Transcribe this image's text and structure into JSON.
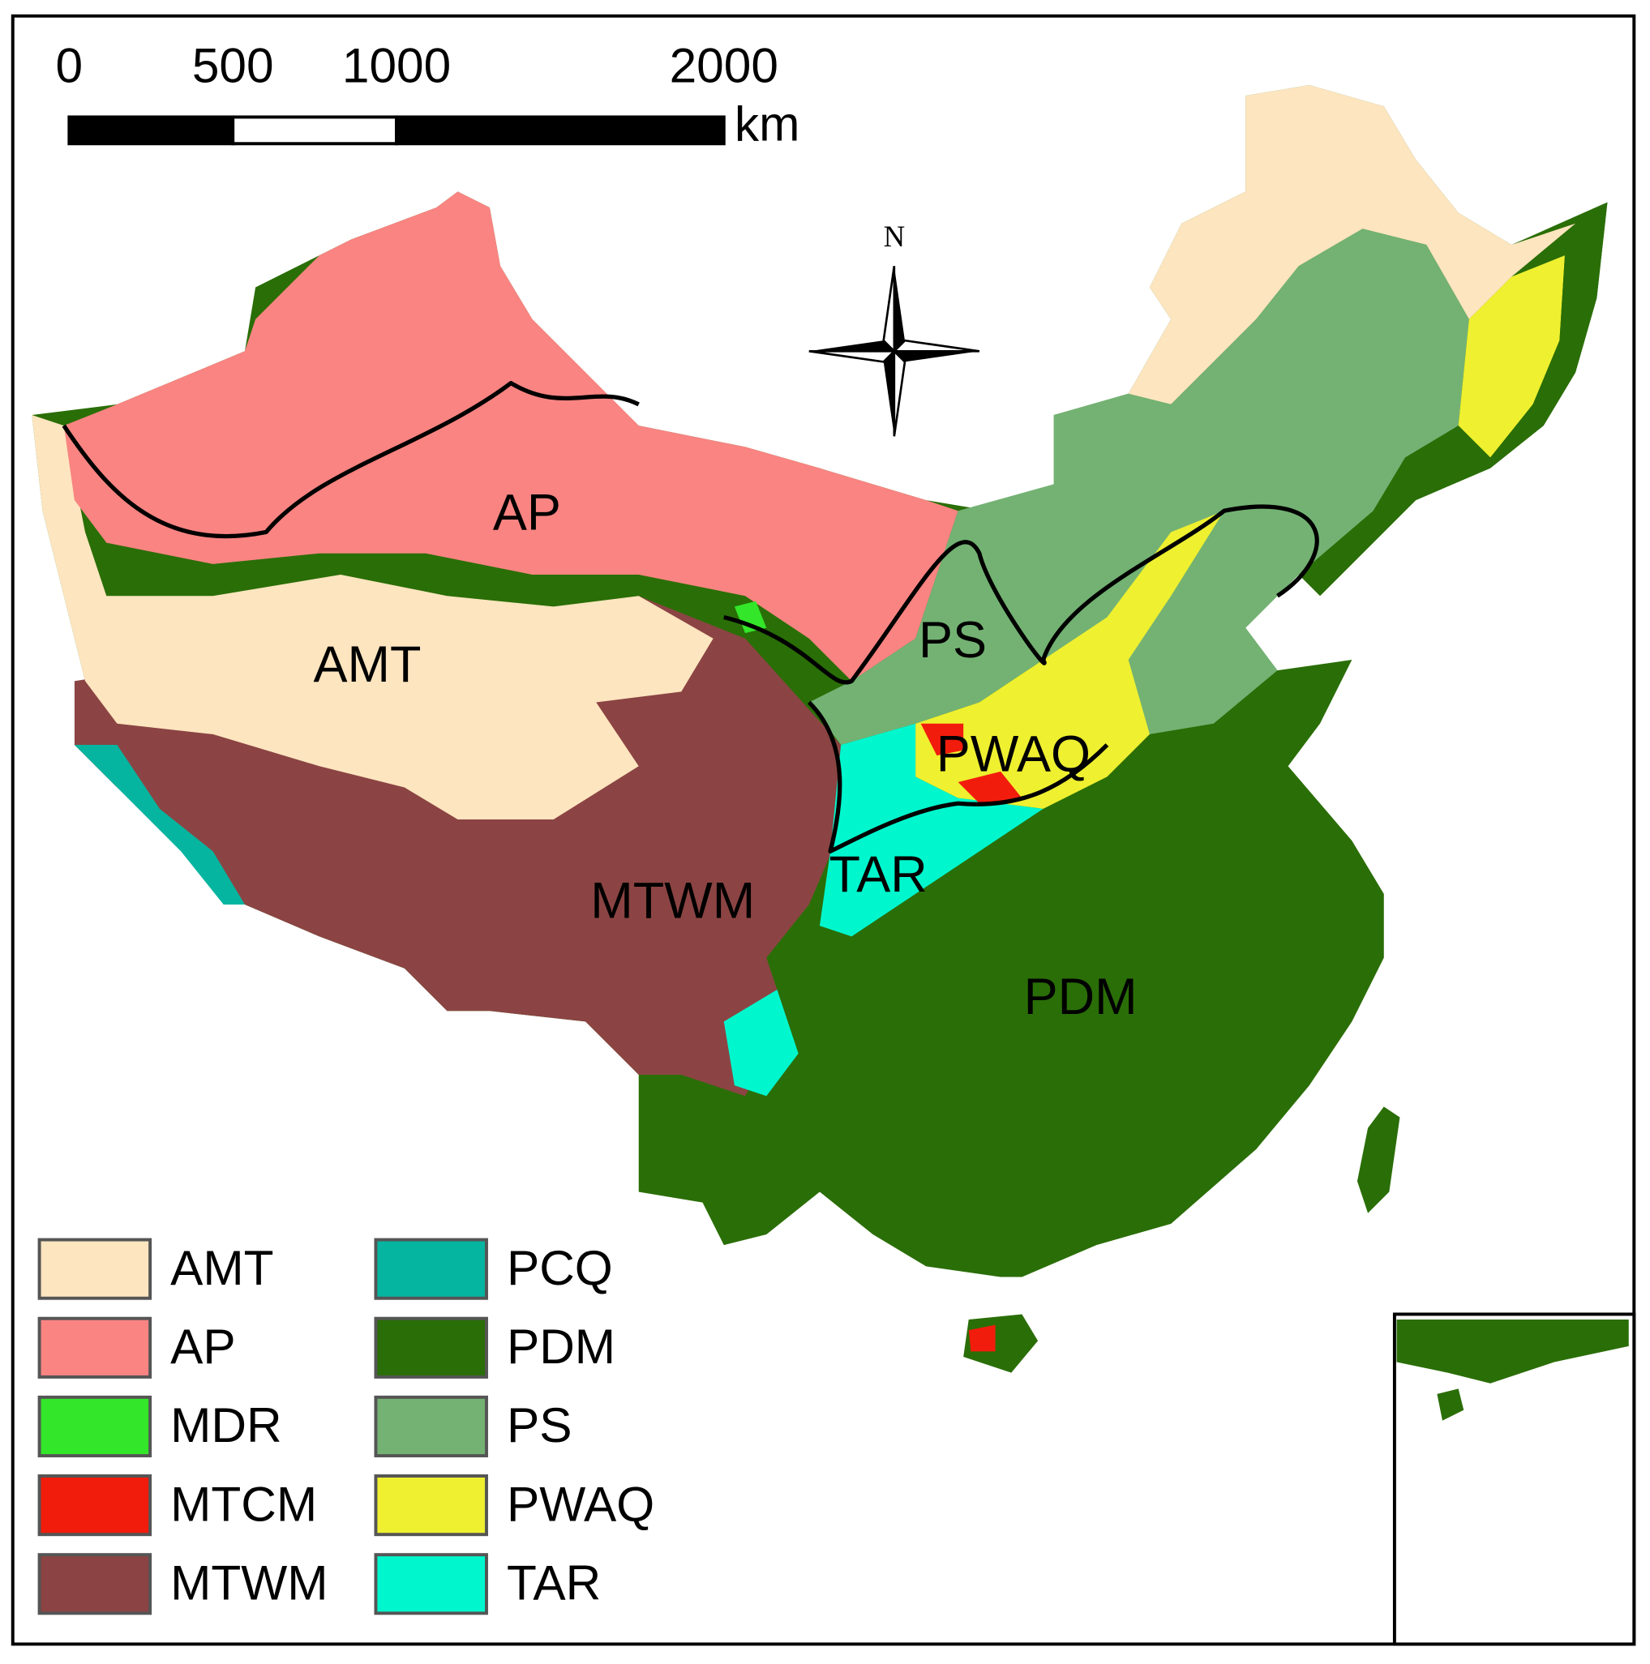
{
  "scale_bar": {
    "ticks": [
      0,
      500,
      1000,
      2000
    ],
    "unit": "km"
  },
  "north_arrow": {
    "label": "N"
  },
  "region_labels": [
    "AP",
    "AMT",
    "PS",
    "PWAQ",
    "TAR",
    "MTWM",
    "PDM"
  ],
  "legend": [
    {
      "label": "AMT",
      "color": "#fde5bf"
    },
    {
      "label": "AP",
      "color": "#f98482"
    },
    {
      "label": "MDR",
      "color": "#33e62a"
    },
    {
      "label": "MTCM",
      "color": "#f21c0c"
    },
    {
      "label": "MTWM",
      "color": "#8b4443"
    },
    {
      "label": "PCQ",
      "color": "#06b5a0"
    },
    {
      "label": "PDM",
      "color": "#2a6e07"
    },
    {
      "label": "PS",
      "color": "#73b273"
    },
    {
      "label": "PWAQ",
      "color": "#eef030"
    },
    {
      "label": "TAR",
      "color": "#00f7cd"
    }
  ]
}
